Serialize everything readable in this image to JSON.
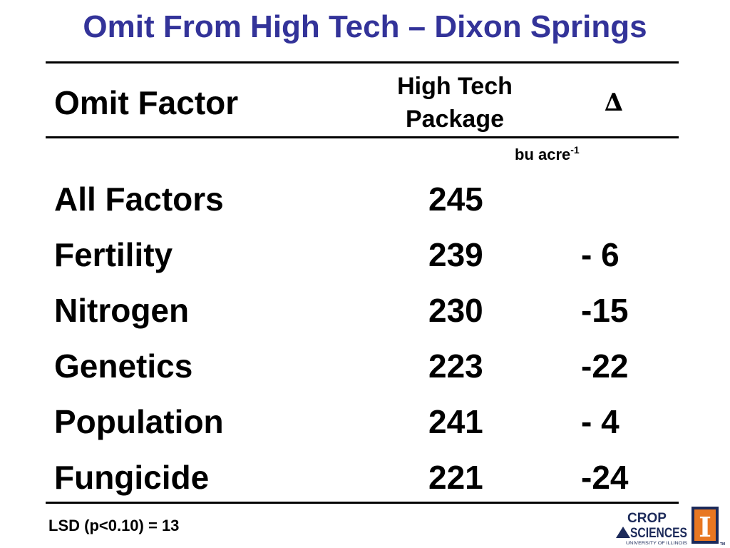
{
  "slide": {
    "title": "Omit From High Tech – Dixon Springs",
    "footnote": "LSD (p<0.10) = 13"
  },
  "table": {
    "header": {
      "factor": "Omit Factor",
      "package_line1": "High Tech",
      "package_line2": "Package",
      "delta": "∆"
    },
    "units": {
      "base": "bu acre",
      "exponent": "-1"
    },
    "rows": [
      {
        "factor": "All Factors",
        "value": "245",
        "delta": ""
      },
      {
        "factor": "Fertility",
        "value": "239",
        "delta": "- 6"
      },
      {
        "factor": "Nitrogen",
        "value": "230",
        "delta": "-15"
      },
      {
        "factor": "Genetics",
        "value": "223",
        "delta": "-22"
      },
      {
        "factor": "Population",
        "value": "241",
        "delta": "- 4"
      },
      {
        "factor": "Fungicide",
        "value": "221",
        "delta": "-24"
      }
    ]
  },
  "logo": {
    "line1": "CROP",
    "line2": "SCIENCES",
    "tagline": "UNIVERSITY OF ILLINOIS",
    "mark": "I",
    "trademark": "TM",
    "colors": {
      "navy": "#1c2a5a",
      "orange": "#e87722"
    }
  },
  "colors": {
    "title": "#333399",
    "text": "#000000",
    "rule": "#000000"
  }
}
